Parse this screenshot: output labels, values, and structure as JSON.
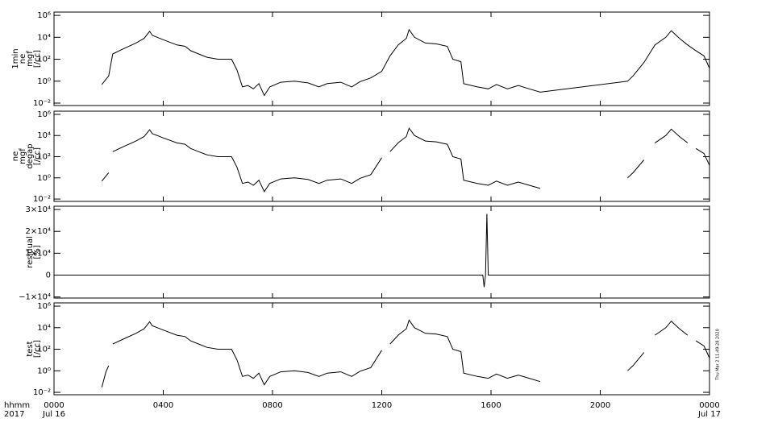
{
  "chart_data": [
    {
      "type": "line",
      "ylabel": [
        "1min",
        "ne",
        "mgf",
        "[/cc]"
      ],
      "log": true,
      "color": "#000000",
      "xlim": [
        0,
        24
      ],
      "ylim": [
        0.006,
        2000000
      ],
      "yticks": [
        {
          "value": 0.01,
          "label": "10⁻²"
        },
        {
          "value": 1,
          "label": "10⁰"
        },
        {
          "value": 100,
          "label": "10²"
        },
        {
          "value": 10000,
          "label": "10⁴"
        },
        {
          "value": 1000000,
          "label": "10⁶"
        }
      ],
      "x": [
        1.75,
        1.9,
        2.0,
        2.15,
        2.5,
        3.0,
        3.3,
        3.5,
        3.6,
        4.0,
        4.5,
        4.8,
        5.0,
        5.3,
        5.6,
        6.0,
        6.5,
        6.7,
        6.9,
        7.1,
        7.3,
        7.5,
        7.7,
        7.9,
        8.3,
        8.8,
        9.3,
        9.7,
        10.0,
        10.5,
        10.9,
        11.2,
        11.6,
        12.0,
        12.3,
        12.6,
        12.9,
        13.0,
        13.2,
        13.6,
        14.0,
        14.4,
        14.6,
        14.9,
        15.0,
        15.5,
        15.9,
        16.2,
        16.6,
        17.0,
        17.4,
        17.8,
        21.0,
        21.2,
        21.6,
        22.0,
        22.4,
        22.6,
        22.9,
        23.2,
        23.5,
        23.8,
        24.0
      ],
      "values": [
        0.5,
        1.5,
        3,
        300,
        800,
        3000,
        8000,
        35000,
        15000,
        6000,
        2000,
        1500,
        600,
        300,
        150,
        100,
        100,
        10,
        0.3,
        0.4,
        0.2,
        0.6,
        0.05,
        0.3,
        0.8,
        1,
        0.7,
        0.3,
        0.6,
        0.8,
        0.3,
        0.9,
        2,
        8,
        200,
        2000,
        8000,
        50000,
        10000,
        3000,
        2500,
        1500,
        100,
        60,
        0.6,
        0.3,
        0.2,
        0.5,
        0.2,
        0.4,
        0.2,
        0.1,
        1,
        3,
        50,
        2000,
        10000,
        40000,
        8000,
        2000,
        600,
        200,
        15
      ]
    },
    {
      "type": "line",
      "ylabel": [
        "ne",
        "mgf",
        "degap",
        "[/cc]"
      ],
      "log": true,
      "color": "#000000",
      "xlim": [
        0,
        24
      ],
      "ylim": [
        0.006,
        2000000
      ],
      "yticks": [
        {
          "value": 0.01,
          "label": "10⁻²"
        },
        {
          "value": 1,
          "label": "10⁰"
        },
        {
          "value": 100,
          "label": "10²"
        },
        {
          "value": 10000,
          "label": "10⁴"
        },
        {
          "value": 1000000,
          "label": "10⁶"
        }
      ],
      "x": [
        1.75,
        1.9,
        2.0,
        2.07,
        2.15,
        2.5,
        3.0,
        3.3,
        3.5,
        3.6,
        4.0,
        4.5,
        4.8,
        5.0,
        5.3,
        5.6,
        6.0,
        6.5,
        6.7,
        6.9,
        7.1,
        7.3,
        7.5,
        7.7,
        7.9,
        8.3,
        8.8,
        9.3,
        9.7,
        10.0,
        10.5,
        10.9,
        11.2,
        11.6,
        12.0,
        12.15,
        12.3,
        12.6,
        12.9,
        13.0,
        13.2,
        13.6,
        14.0,
        14.4,
        14.6,
        14.9,
        15.0,
        15.5,
        15.9,
        16.2,
        16.6,
        17.0,
        17.4,
        17.8,
        19.0,
        21.0,
        21.2,
        21.6,
        21.8,
        22.0,
        22.4,
        22.6,
        22.9,
        23.2,
        23.35,
        23.5,
        23.8,
        24.0
      ],
      "values": [
        0.5,
        1.5,
        3,
        null,
        300,
        800,
        3000,
        8000,
        35000,
        15000,
        6000,
        2000,
        1500,
        600,
        300,
        150,
        100,
        100,
        10,
        0.3,
        0.4,
        0.2,
        0.6,
        0.05,
        0.3,
        0.8,
        1,
        0.7,
        0.3,
        0.6,
        0.8,
        0.3,
        0.9,
        2,
        80,
        null,
        300,
        2000,
        8000,
        50000,
        10000,
        3000,
        2500,
        1500,
        100,
        60,
        0.6,
        0.3,
        0.2,
        0.5,
        0.2,
        0.4,
        0.2,
        0.1,
        null,
        1,
        3,
        50,
        null,
        2000,
        10000,
        40000,
        8000,
        2000,
        null,
        600,
        200,
        15
      ]
    },
    {
      "type": "line",
      "ylabel": [
        "residual",
        "[%]"
      ],
      "log": false,
      "color": "#000000",
      "xlim": [
        0,
        24
      ],
      "ylim": [
        -10500,
        31500
      ],
      "yticks": [
        {
          "value": -10000,
          "label": "−1×10⁴"
        },
        0,
        {
          "value": 10000,
          "label": "1×10⁴"
        },
        {
          "value": 20000,
          "label": "2×10⁴"
        },
        {
          "value": 30000,
          "label": "3×10⁴"
        }
      ],
      "x": [
        0,
        15.7,
        15.75,
        15.8,
        15.85,
        15.9,
        24
      ],
      "values": [
        0,
        0,
        -5500,
        0,
        28000,
        0,
        0
      ]
    },
    {
      "type": "line",
      "ylabel": [
        "test",
        "[/cc]"
      ],
      "log": true,
      "color": "#000000",
      "xlim": [
        0,
        24
      ],
      "ylim": [
        0.006,
        2000000
      ],
      "yticks": [
        {
          "value": 0.01,
          "label": "10⁻²"
        },
        {
          "value": 1,
          "label": "10⁰"
        },
        {
          "value": 100,
          "label": "10²"
        },
        {
          "value": 10000,
          "label": "10⁴"
        },
        {
          "value": 1000000,
          "label": "10⁶"
        }
      ],
      "x": [
        1.75,
        1.9,
        2.0,
        2.07,
        2.15,
        2.5,
        3.0,
        3.3,
        3.5,
        3.6,
        4.0,
        4.5,
        4.8,
        5.0,
        5.3,
        5.6,
        6.0,
        6.5,
        6.7,
        6.9,
        7.1,
        7.3,
        7.5,
        7.7,
        7.9,
        8.3,
        8.8,
        9.3,
        9.7,
        10.0,
        10.5,
        10.9,
        11.2,
        11.6,
        12.0,
        12.15,
        12.3,
        12.6,
        12.9,
        13.0,
        13.2,
        13.6,
        14.0,
        14.4,
        14.6,
        14.9,
        15.0,
        15.5,
        15.9,
        16.2,
        16.6,
        17.0,
        17.4,
        17.8,
        19.0,
        21.0,
        21.2,
        21.6,
        21.8,
        22.0,
        22.4,
        22.6,
        22.9,
        23.2,
        23.35,
        23.5,
        23.8,
        24.0
      ],
      "values": [
        0.03,
        0.8,
        3,
        null,
        300,
        800,
        3000,
        8000,
        35000,
        15000,
        6000,
        2000,
        1500,
        600,
        300,
        150,
        100,
        100,
        10,
        0.3,
        0.4,
        0.2,
        0.6,
        0.05,
        0.3,
        0.8,
        1,
        0.7,
        0.3,
        0.6,
        0.8,
        0.3,
        0.9,
        2,
        80,
        null,
        300,
        2000,
        8000,
        50000,
        10000,
        3000,
        2500,
        1500,
        100,
        60,
        0.6,
        0.3,
        0.2,
        0.5,
        0.2,
        0.4,
        0.2,
        0.1,
        null,
        1,
        3,
        50,
        null,
        2000,
        10000,
        40000,
        8000,
        2000,
        null,
        600,
        200,
        15
      ],
      "xlabel": [
        "hhmm",
        "2017"
      ],
      "xticks": [
        {
          "value": 0,
          "label": "0000",
          "date": "Jul 16"
        },
        {
          "value": 4,
          "label": "0400"
        },
        {
          "value": 8,
          "label": "0800"
        },
        {
          "value": 12,
          "label": "1200"
        },
        {
          "value": 16,
          "label": "1600"
        },
        {
          "value": 20,
          "label": "2000"
        },
        {
          "value": 24,
          "label": "0000",
          "date": "Jul 17"
        }
      ],
      "footnote": "Thu Mar  2 11:49:28 2020"
    }
  ]
}
